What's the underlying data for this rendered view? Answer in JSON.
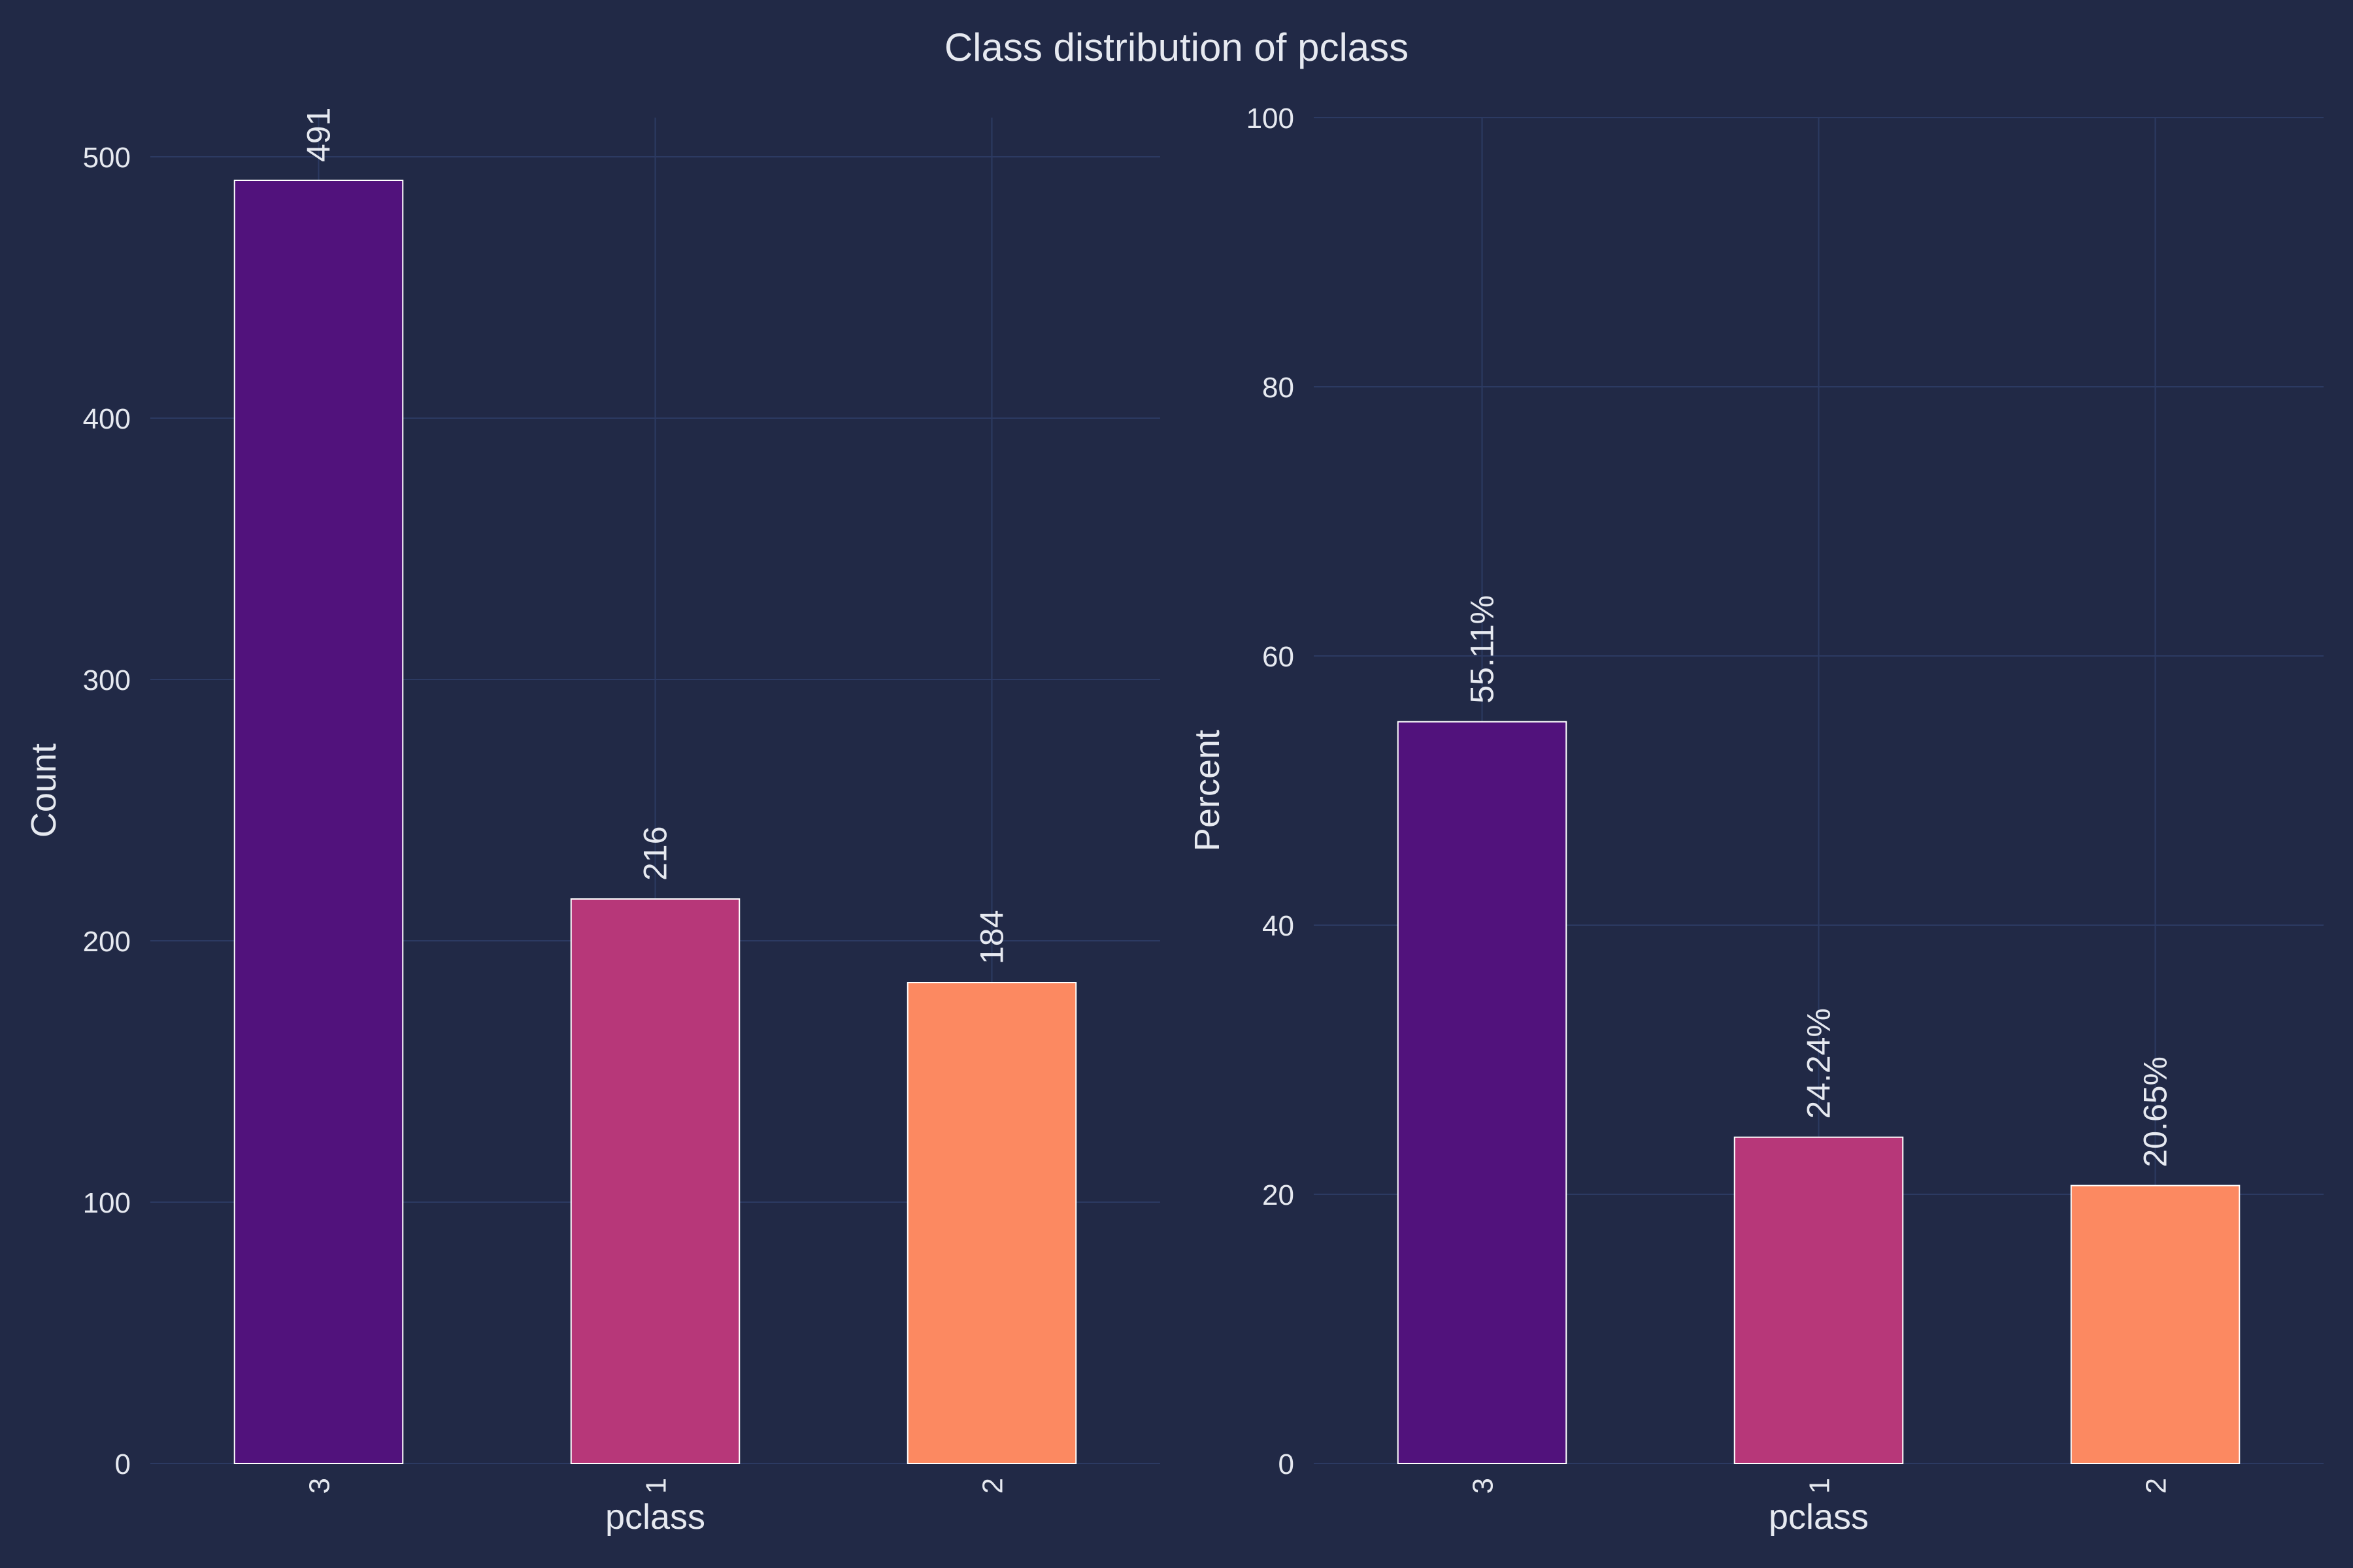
{
  "figure": {
    "title": "Class distribution of pclass",
    "background": "#212946",
    "text_color": "#e6e9f0",
    "grid_color": "#2c3a62"
  },
  "chart_data": [
    {
      "type": "bar",
      "xlabel": "pclass",
      "ylabel": "Count",
      "categories": [
        "3",
        "1",
        "2"
      ],
      "values": [
        491,
        216,
        184
      ],
      "value_labels": [
        "491",
        "216",
        "184"
      ],
      "colors": [
        "#51127c",
        "#b73779",
        "#fc8961"
      ],
      "ylim": [
        0,
        515
      ],
      "yticks": [
        0,
        100,
        200,
        300,
        400,
        500
      ],
      "grid": true,
      "xtick_rotation": 90,
      "label_rotation": 90
    },
    {
      "type": "bar",
      "xlabel": "pclass",
      "ylabel": "Percent",
      "categories": [
        "3",
        "1",
        "2"
      ],
      "values": [
        55.11,
        24.24,
        20.65
      ],
      "value_labels": [
        "55.11%",
        "24.24%",
        "20.65%"
      ],
      "colors": [
        "#51127c",
        "#b73779",
        "#fc8961"
      ],
      "ylim": [
        0,
        100
      ],
      "yticks": [
        0,
        20,
        40,
        60,
        80,
        100
      ],
      "grid": true,
      "xtick_rotation": 90,
      "label_rotation": 90
    }
  ]
}
